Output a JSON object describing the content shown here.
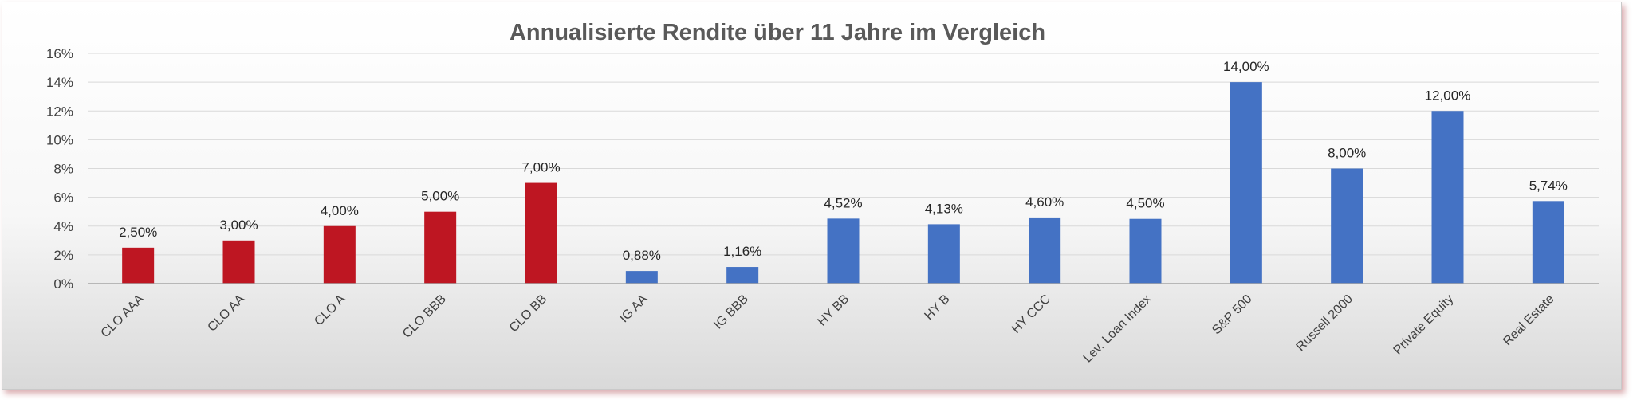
{
  "chart_data": {
    "type": "bar",
    "title": "Annualisierte Rendite über 11 Jahre im Vergleich",
    "xlabel": "",
    "ylabel": "",
    "categories": [
      "CLO AAA",
      "CLO AA",
      "CLO A",
      "CLO BBB",
      "CLO BB",
      "IG AA",
      "IG BBB",
      "HY BB",
      "HY B",
      "HY CCC",
      "Lev. Loan Index",
      "S&P 500",
      "Russell 2000",
      "Private Equity",
      "Real Estate"
    ],
    "values": [
      2.5,
      3.0,
      4.0,
      5.0,
      7.0,
      0.88,
      1.16,
      4.52,
      4.13,
      4.6,
      4.5,
      14.0,
      8.0,
      12.0,
      5.74
    ],
    "data_labels": [
      "2,50%",
      "3,00%",
      "4,00%",
      "5,00%",
      "7,00%",
      "0,88%",
      "1,16%",
      "4,52%",
      "4,13%",
      "4,60%",
      "4,50%",
      "14,00%",
      "8,00%",
      "12,00%",
      "5,74%"
    ],
    "bar_colors": [
      "#be1622",
      "#be1622",
      "#be1622",
      "#be1622",
      "#be1622",
      "#4472c4",
      "#4472c4",
      "#4472c4",
      "#4472c4",
      "#4472c4",
      "#4472c4",
      "#4472c4",
      "#4472c4",
      "#4472c4",
      "#4472c4"
    ],
    "ylim": [
      0,
      16
    ],
    "y_ticks": [
      0,
      2,
      4,
      6,
      8,
      10,
      12,
      14,
      16
    ],
    "y_tick_labels": [
      "0%",
      "2%",
      "4%",
      "6%",
      "8%",
      "10%",
      "12%",
      "14%",
      "16%"
    ],
    "grid": true,
    "legend": "none"
  }
}
